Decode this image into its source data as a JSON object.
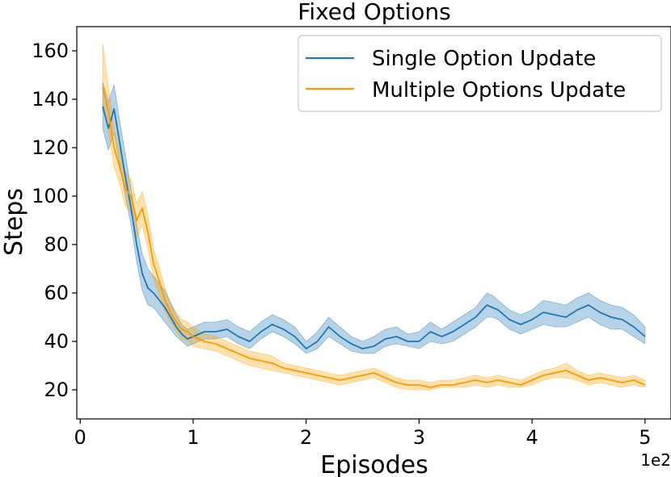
{
  "chart_data": {
    "type": "line",
    "title": "Fixed Options",
    "xlabel": "Episodes",
    "ylabel": "Steps",
    "x_offset_text": "1e2",
    "xlim": [
      -0.03,
      5.23
    ],
    "ylim": [
      8,
      170
    ],
    "xticks": [
      0,
      1,
      2,
      3,
      4,
      5
    ],
    "yticks": [
      20,
      40,
      60,
      80,
      100,
      120,
      140,
      160
    ],
    "grid": false,
    "legend_position": "top-right",
    "series": [
      {
        "name": "Single Option Update",
        "color": "#1f77b4",
        "band_color": "#1f77b4",
        "x": [
          0.2,
          0.25,
          0.3,
          0.35,
          0.4,
          0.45,
          0.5,
          0.55,
          0.6,
          0.65,
          0.7,
          0.75,
          0.8,
          0.85,
          0.9,
          0.95,
          1.0,
          1.1,
          1.2,
          1.3,
          1.4,
          1.5,
          1.6,
          1.7,
          1.8,
          1.9,
          2.0,
          2.1,
          2.2,
          2.3,
          2.4,
          2.5,
          2.6,
          2.7,
          2.8,
          2.9,
          3.0,
          3.1,
          3.2,
          3.3,
          3.4,
          3.5,
          3.6,
          3.65,
          3.7,
          3.8,
          3.9,
          4.0,
          4.1,
          4.2,
          4.3,
          4.4,
          4.5,
          4.6,
          4.7,
          4.8,
          4.9,
          5.0
        ],
        "y": [
          137,
          128,
          136,
          122,
          108,
          95,
          80,
          68,
          62,
          60,
          57,
          54,
          50,
          46,
          43,
          41,
          42,
          44,
          44,
          45,
          42,
          40,
          44,
          47,
          45,
          42,
          37,
          40,
          46,
          42,
          39,
          37,
          38,
          41,
          42,
          40,
          40,
          44,
          42,
          44,
          47,
          50,
          55,
          54,
          53,
          49,
          47,
          49,
          52,
          51,
          50,
          53,
          55,
          52,
          50,
          49,
          46,
          42
        ],
        "lower": [
          128,
          119,
          126,
          113,
          100,
          88,
          73,
          61,
          55,
          54,
          51,
          48,
          45,
          42,
          40,
          38,
          39,
          41,
          41,
          42,
          39,
          37,
          41,
          44,
          42,
          39,
          35,
          37,
          42,
          39,
          36,
          35,
          35,
          38,
          39,
          38,
          37,
          40,
          39,
          40,
          43,
          46,
          50,
          50,
          49,
          45,
          43,
          45,
          47,
          46,
          46,
          48,
          50,
          47,
          45,
          45,
          42,
          39
        ],
        "upper": [
          147,
          139,
          146,
          131,
          117,
          103,
          88,
          76,
          70,
          67,
          64,
          61,
          56,
          51,
          47,
          45,
          46,
          48,
          48,
          49,
          46,
          44,
          48,
          51,
          49,
          46,
          40,
          44,
          50,
          46,
          42,
          40,
          42,
          45,
          46,
          43,
          44,
          48,
          45,
          48,
          51,
          54,
          60,
          59,
          57,
          53,
          51,
          53,
          57,
          56,
          55,
          58,
          60,
          57,
          55,
          54,
          51,
          46
        ]
      },
      {
        "name": "Multiple Options Update",
        "color": "#ff9900",
        "band_color": "#ffa500",
        "x": [
          0.2,
          0.25,
          0.3,
          0.35,
          0.4,
          0.45,
          0.5,
          0.55,
          0.6,
          0.65,
          0.7,
          0.75,
          0.8,
          0.85,
          0.9,
          0.95,
          1.0,
          1.1,
          1.2,
          1.3,
          1.4,
          1.5,
          1.6,
          1.7,
          1.8,
          1.9,
          2.0,
          2.1,
          2.2,
          2.3,
          2.4,
          2.5,
          2.6,
          2.7,
          2.8,
          2.9,
          3.0,
          3.1,
          3.2,
          3.3,
          3.4,
          3.5,
          3.6,
          3.7,
          3.8,
          3.9,
          4.0,
          4.1,
          4.2,
          4.3,
          4.4,
          4.5,
          4.6,
          4.7,
          4.8,
          4.9,
          5.0
        ],
        "y": [
          145,
          135,
          120,
          112,
          103,
          100,
          90,
          95,
          85,
          72,
          65,
          57,
          52,
          48,
          45,
          44,
          42,
          40,
          39,
          37,
          35,
          33,
          32,
          31,
          29,
          28,
          27,
          26,
          25,
          24,
          25,
          26,
          27,
          25,
          23,
          22,
          22,
          21,
          22,
          22,
          23,
          24,
          23,
          24,
          23,
          22,
          24,
          26,
          27,
          28,
          26,
          24,
          25,
          24,
          23,
          24,
          22
        ],
        "lower": [
          138,
          127,
          112,
          105,
          96,
          93,
          83,
          88,
          78,
          66,
          59,
          52,
          48,
          44,
          41,
          40,
          38,
          37,
          36,
          34,
          32,
          30,
          29,
          28,
          27,
          26,
          25,
          24,
          23,
          22,
          23,
          24,
          25,
          23,
          21,
          20,
          20,
          20,
          21,
          21,
          21,
          22,
          21,
          22,
          21,
          21,
          22,
          24,
          25,
          25,
          24,
          22,
          23,
          22,
          21,
          22,
          21
        ],
        "upper": [
          163,
          145,
          128,
          119,
          110,
          107,
          97,
          102,
          92,
          78,
          71,
          62,
          56,
          52,
          49,
          48,
          46,
          43,
          42,
          40,
          38,
          36,
          35,
          34,
          31,
          30,
          29,
          28,
          27,
          26,
          27,
          28,
          29,
          27,
          25,
          24,
          24,
          23,
          24,
          24,
          25,
          26,
          25,
          26,
          25,
          24,
          26,
          28,
          29,
          31,
          28,
          26,
          27,
          26,
          25,
          26,
          24
        ]
      }
    ]
  }
}
